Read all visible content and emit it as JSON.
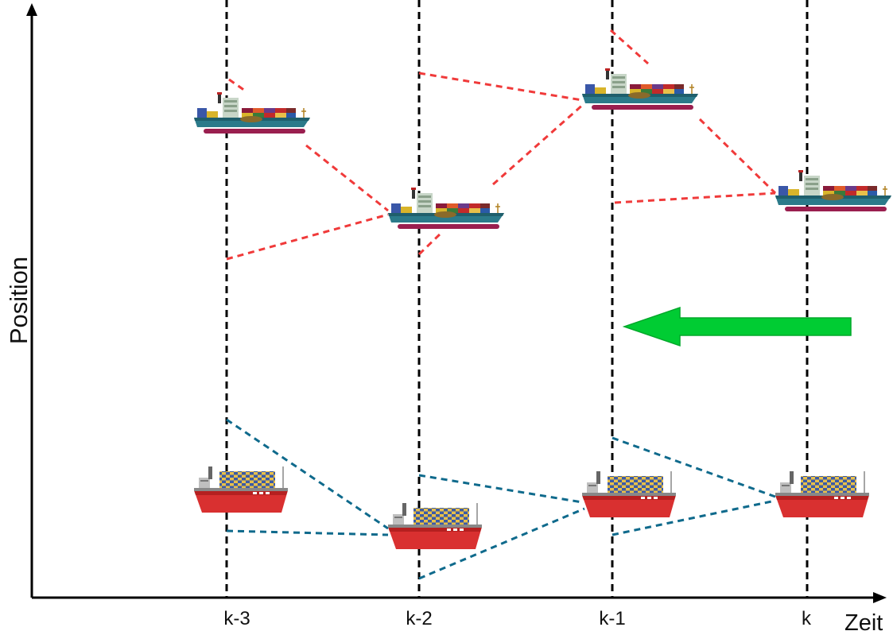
{
  "axes": {
    "y_label": "Position",
    "x_label": "Zeit"
  },
  "time_steps": [
    "k-3",
    "k-2",
    "k-1",
    "k"
  ],
  "colors": {
    "axis": "#000000",
    "time_lines": "#000000",
    "upper_links": "#f03a3a",
    "lower_links": "#0f6a8c",
    "arrow": "#00cc33",
    "arrow_stroke": "#00a82a"
  },
  "icons": {
    "upper_ship": "container-ship-icon",
    "lower_ship": "cargo-ship-icon",
    "arrow": "left-arrow-icon"
  }
}
